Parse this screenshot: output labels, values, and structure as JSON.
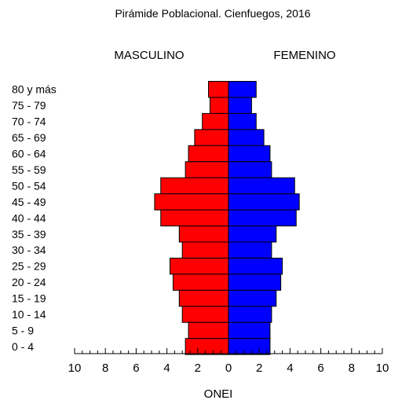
{
  "chart_data": {
    "type": "bar",
    "title": "Pirámide Poblacional. Cienfuegos, 2016",
    "left_label": "MASCULINO",
    "right_label": "FEMENINO",
    "xlabel": "ONEI",
    "x_ticks": [
      "10",
      "8",
      "6",
      "4",
      "2",
      "0",
      "2",
      "4",
      "6",
      "8",
      "10"
    ],
    "xlim": [
      -10,
      10
    ],
    "grid": false,
    "categories": [
      "80 y más",
      "75 - 79",
      "70 - 74",
      "65 - 69",
      "60 - 64",
      "55 - 59",
      "50 - 54",
      "45 - 49",
      "40 - 44",
      "35 - 39",
      "30 - 34",
      "25 - 29",
      "20 - 24",
      "15 - 19",
      "10 - 14",
      "5 - 9",
      "0 - 4"
    ],
    "series": [
      {
        "name": "MASCULINO",
        "color": "#ff0000",
        "values": [
          1.3,
          1.2,
          1.7,
          2.2,
          2.6,
          2.8,
          4.4,
          4.8,
          4.4,
          3.2,
          3.0,
          3.8,
          3.6,
          3.2,
          3.0,
          2.6,
          2.8
        ]
      },
      {
        "name": "FEMENINO",
        "color": "#0000ff",
        "values": [
          1.8,
          1.5,
          1.8,
          2.3,
          2.7,
          2.8,
          4.3,
          4.6,
          4.4,
          3.1,
          2.8,
          3.5,
          3.4,
          3.1,
          2.8,
          2.7,
          2.7
        ]
      }
    ]
  }
}
